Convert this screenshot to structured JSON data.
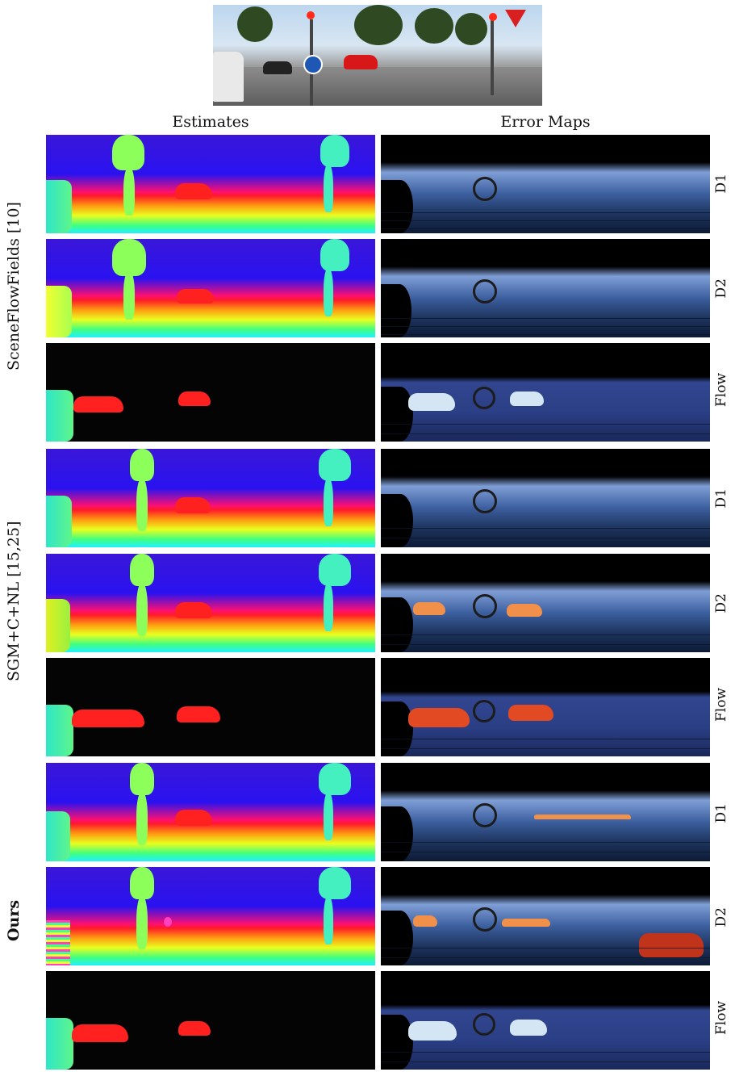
{
  "columns": {
    "estimates": "Estimates",
    "error_maps": "Error Maps"
  },
  "methods": [
    {
      "label": "SceneFlowFields [10]",
      "bold": false
    },
    {
      "label": "SGM+C+NL [15,25]",
      "bold": false
    },
    {
      "label": "Ours",
      "bold": true
    }
  ],
  "map_types": [
    "D1",
    "D2",
    "Flow"
  ]
}
